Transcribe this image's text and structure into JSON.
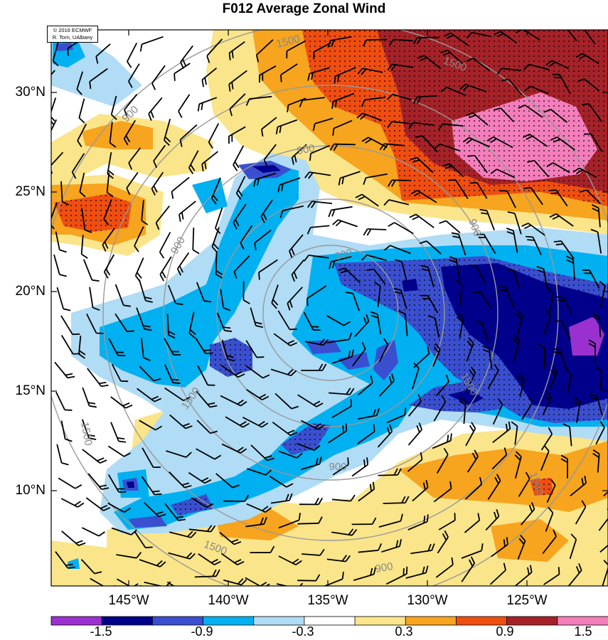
{
  "title": "F012 Average Zonal Wind",
  "credit": {
    "line1": "© 2016 ECMWF",
    "line2": "R. Torn, UAlbany"
  },
  "lat_labels": [
    "30°N",
    "25°N",
    "20°N",
    "15°N",
    "10°N"
  ],
  "lon_labels": [
    "145°W",
    "140°W",
    "135°W",
    "130°W",
    "125°W"
  ],
  "colorbar": {
    "labels": [
      "-1.5",
      "-0.9",
      "-0.3",
      "0.3",
      "0.9",
      "1.5"
    ],
    "colors": [
      "#9b30d0",
      "#00008b",
      "#3a4fd0",
      "#00b0f0",
      "#b0dcf5",
      "#ffffff",
      "#fbe58a",
      "#f7a41e",
      "#f04e10",
      "#a52228",
      "#f47ebb"
    ]
  },
  "contour_labels": [
    "1500",
    "900",
    "300",
    "900",
    "1500",
    "900",
    "900",
    "1500",
    "1500",
    "1500",
    "900",
    "1500",
    "900",
    "1500"
  ]
}
